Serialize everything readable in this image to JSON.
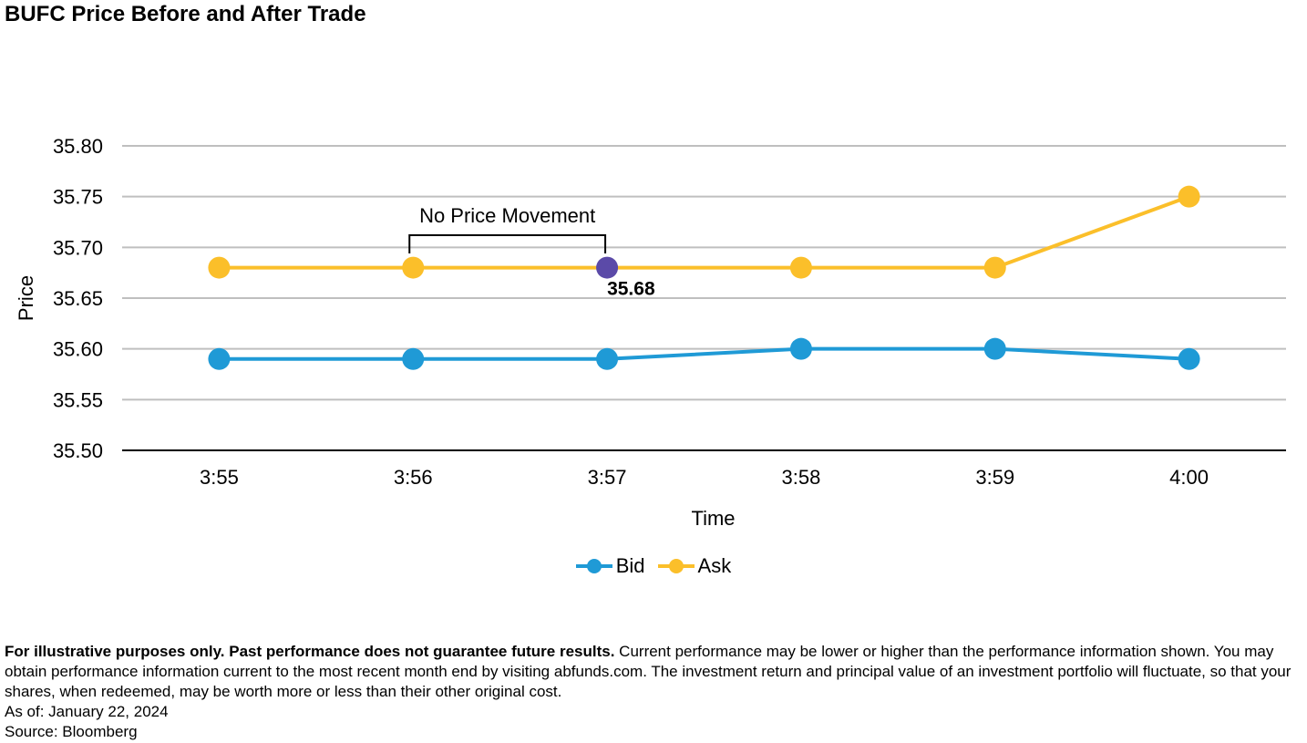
{
  "chart_data": {
    "type": "line",
    "title": "BUFC Price Before and After Trade",
    "xlabel": "Time",
    "ylabel": "Price",
    "categories": [
      "3:55",
      "3:56",
      "3:57",
      "3:58",
      "3:59",
      "4:00"
    ],
    "ylim": [
      35.5,
      35.8
    ],
    "yticks": [
      "35.50",
      "35.55",
      "35.60",
      "35.65",
      "35.70",
      "35.75",
      "35.80"
    ],
    "grid": true,
    "legend_position": "bottom",
    "series": [
      {
        "name": "Bid",
        "color": "#1f9ad6",
        "values": [
          35.59,
          35.59,
          35.59,
          35.6,
          35.6,
          35.59
        ]
      },
      {
        "name": "Ask",
        "color": "#fbbf2a",
        "values": [
          35.68,
          35.68,
          35.68,
          35.68,
          35.68,
          35.75
        ]
      }
    ],
    "highlight": {
      "series": "Ask",
      "category": "3:57",
      "value": 35.68,
      "label": "35.68",
      "color": "#5b4aa8"
    },
    "annotation": {
      "text": "No Price Movement",
      "from": "3:56",
      "to": "3:57"
    }
  },
  "footnote": {
    "bold": "For illustrative purposes only. Past performance does not guarantee future results.",
    "text": " Current performance may be lower or higher than the performance information shown. You may obtain performance information current to the most recent month end by visiting abfunds.com. The investment return and principal value of an investment portfolio will fluctuate, so that your shares, when redeemed, may be worth more or less than their other original cost.",
    "as_of": "As of: January 22, 2024",
    "source": "Source: Bloomberg"
  }
}
